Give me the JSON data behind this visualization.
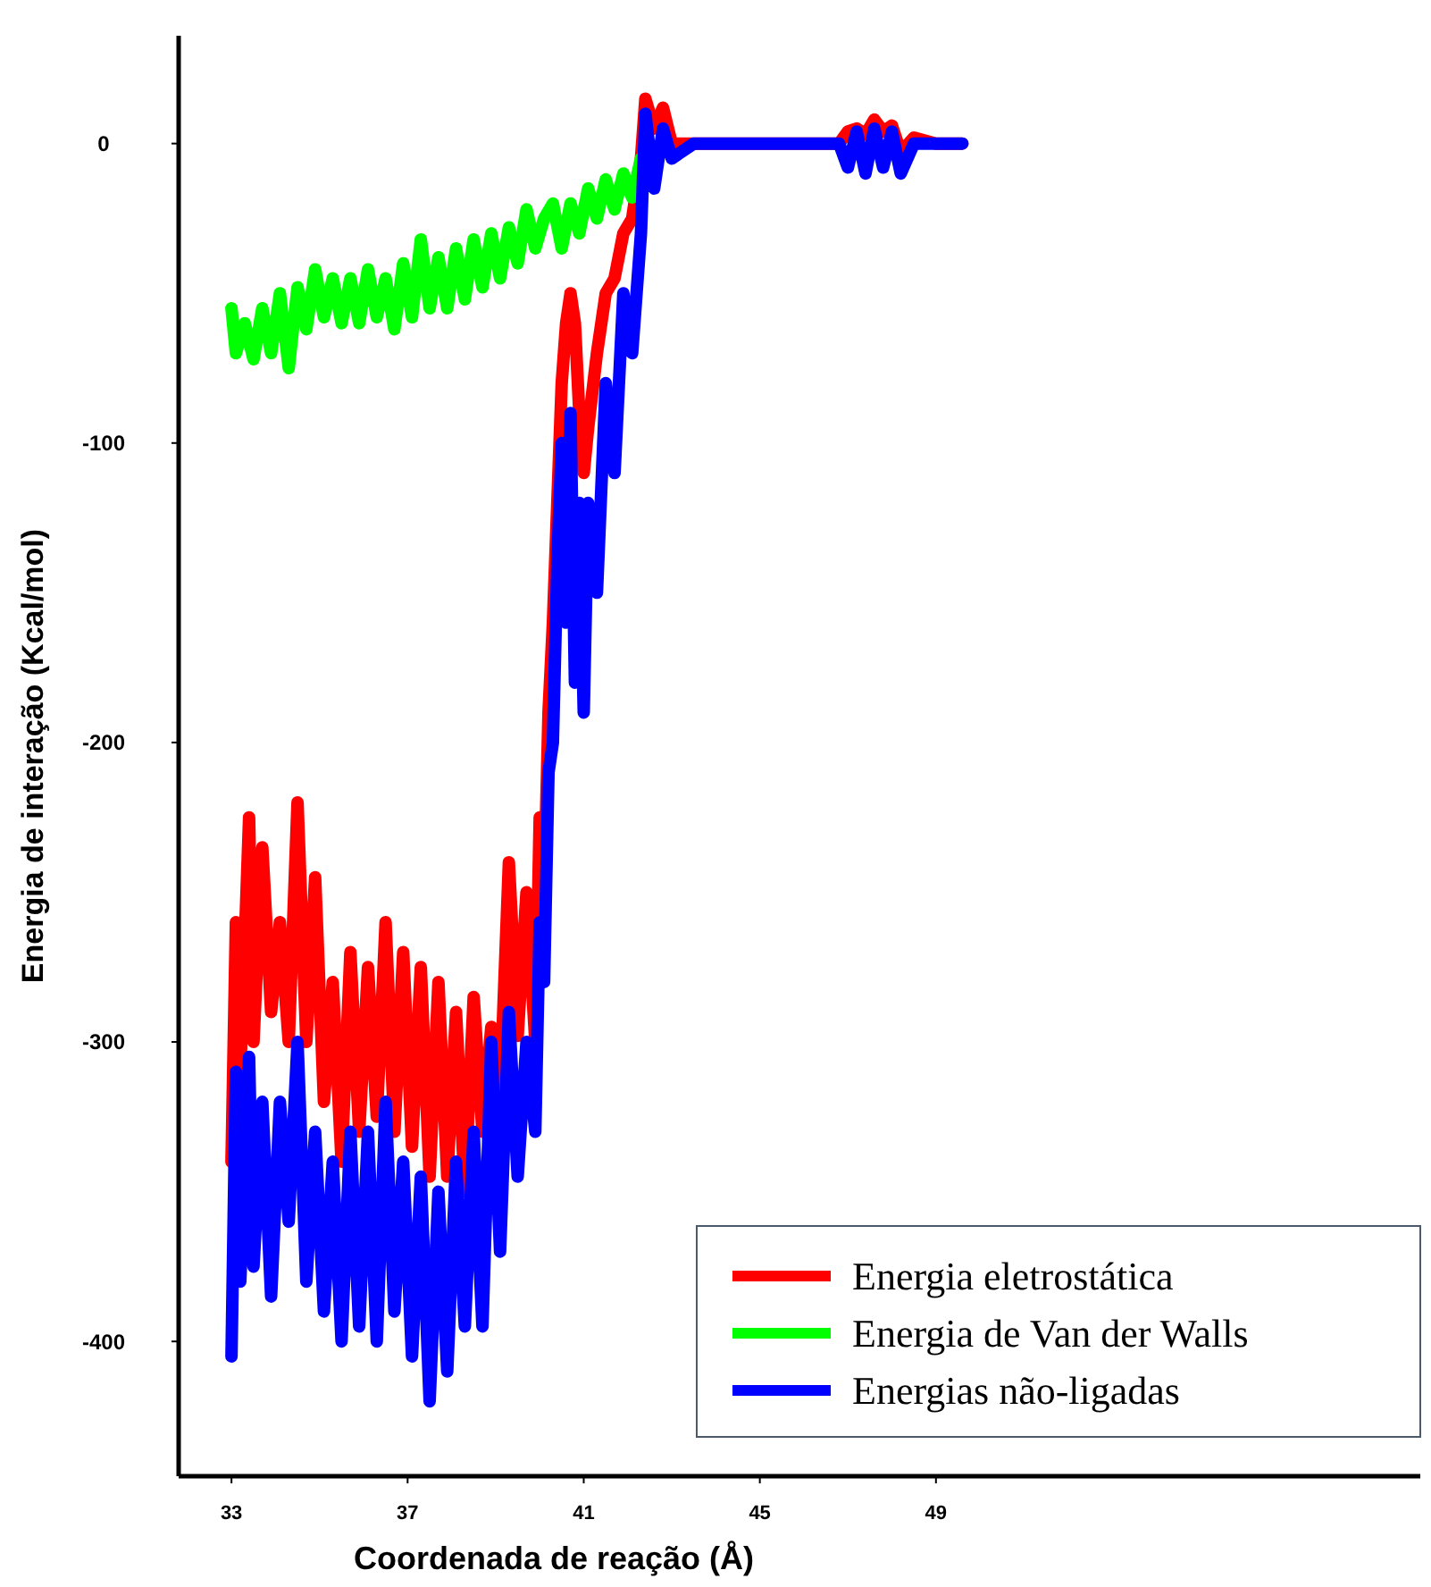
{
  "chart_data": {
    "type": "line",
    "xlabel": "Coordenada de reação (Å)",
    "ylabel": "Energia de interação (Kcal/mol)",
    "xlim": [
      31.8,
      60
    ],
    "xticks": [
      33,
      37,
      41,
      45,
      49
    ],
    "ylim": [
      -445,
      36
    ],
    "yticks": [
      -400,
      -300,
      -200,
      -100,
      0
    ],
    "grid": false,
    "legend": "bottom right",
    "marker": "none",
    "line_style": "solid",
    "series": [
      {
        "name": "Energia eletrostática",
        "color": "#ff0000",
        "x": [
          33.0,
          33.1,
          33.2,
          33.4,
          33.5,
          33.7,
          33.9,
          34.1,
          34.3,
          34.5,
          34.7,
          34.9,
          35.1,
          35.3,
          35.5,
          35.7,
          35.9,
          36.1,
          36.3,
          36.5,
          36.7,
          36.9,
          37.1,
          37.3,
          37.5,
          37.7,
          37.9,
          38.1,
          38.3,
          38.5,
          38.7,
          38.9,
          39.1,
          39.3,
          39.5,
          39.7,
          39.9,
          40.0,
          40.1,
          40.2,
          40.3,
          40.4,
          40.5,
          40.6,
          40.7,
          40.8,
          40.9,
          41.0,
          41.1,
          41.3,
          41.5,
          41.7,
          41.9,
          42.1,
          42.3,
          42.4,
          42.6,
          42.8,
          43.0,
          43.5,
          44,
          45,
          46,
          46.8,
          47.0,
          47.2,
          47.4,
          47.6,
          47.8,
          48.0,
          48.2,
          48.5,
          49,
          49.6
        ],
        "values": [
          -340,
          -260,
          -310,
          -225,
          -300,
          -235,
          -290,
          -260,
          -300,
          -220,
          -300,
          -245,
          -320,
          -280,
          -340,
          -270,
          -330,
          -275,
          -325,
          -260,
          -330,
          -270,
          -335,
          -275,
          -345,
          -280,
          -345,
          -290,
          -350,
          -285,
          -330,
          -295,
          -318,
          -240,
          -298,
          -250,
          -300,
          -225,
          -250,
          -190,
          -160,
          -120,
          -80,
          -60,
          -50,
          -60,
          -90,
          -110,
          -95,
          -70,
          -50,
          -45,
          -30,
          -25,
          -5,
          15,
          5,
          12,
          0,
          0,
          0,
          0,
          0,
          0,
          4,
          5,
          3,
          8,
          4,
          6,
          -3,
          2,
          0,
          0
        ]
      },
      {
        "name": "Energia de Van der Walls",
        "color": "#00ff00",
        "x": [
          33.0,
          33.1,
          33.3,
          33.5,
          33.7,
          33.9,
          34.1,
          34.3,
          34.5,
          34.7,
          34.9,
          35.1,
          35.3,
          35.5,
          35.7,
          35.9,
          36.1,
          36.3,
          36.5,
          36.7,
          36.9,
          37.1,
          37.3,
          37.5,
          37.7,
          37.9,
          38.1,
          38.3,
          38.5,
          38.7,
          38.9,
          39.1,
          39.3,
          39.5,
          39.7,
          39.9,
          40.1,
          40.3,
          40.5,
          40.7,
          40.9,
          41.1,
          41.3,
          41.5,
          41.7,
          41.9,
          42.1,
          42.3
        ],
        "values": [
          -55,
          -70,
          -60,
          -72,
          -55,
          -70,
          -50,
          -75,
          -48,
          -62,
          -42,
          -58,
          -45,
          -60,
          -45,
          -60,
          -42,
          -58,
          -45,
          -62,
          -40,
          -58,
          -32,
          -55,
          -38,
          -55,
          -35,
          -52,
          -32,
          -48,
          -30,
          -45,
          -28,
          -40,
          -22,
          -35,
          -25,
          -20,
          -35,
          -20,
          -30,
          -15,
          -25,
          -12,
          -22,
          -10,
          -18,
          -5
        ]
      },
      {
        "name": "Energias não-ligadas",
        "color": "#0000ff",
        "x": [
          33.0,
          33.1,
          33.2,
          33.4,
          33.5,
          33.7,
          33.9,
          34.1,
          34.3,
          34.5,
          34.7,
          34.9,
          35.1,
          35.3,
          35.5,
          35.7,
          35.9,
          36.1,
          36.3,
          36.5,
          36.7,
          36.9,
          37.1,
          37.3,
          37.5,
          37.7,
          37.9,
          38.1,
          38.3,
          38.5,
          38.7,
          38.9,
          39.1,
          39.3,
          39.5,
          39.7,
          39.9,
          40.0,
          40.1,
          40.2,
          40.3,
          40.4,
          40.5,
          40.6,
          40.7,
          40.8,
          40.9,
          41.0,
          41.1,
          41.3,
          41.5,
          41.7,
          41.9,
          42.1,
          42.3,
          42.4,
          42.6,
          42.8,
          43.0,
          43.5,
          44,
          45,
          46,
          46.8,
          47.0,
          47.2,
          47.4,
          47.6,
          47.8,
          48.0,
          48.2,
          48.5,
          49,
          49.6
        ],
        "values": [
          -405,
          -310,
          -380,
          -305,
          -375,
          -320,
          -385,
          -320,
          -360,
          -300,
          -380,
          -330,
          -390,
          -340,
          -400,
          -330,
          -395,
          -330,
          -400,
          -320,
          -390,
          -340,
          -405,
          -345,
          -420,
          -350,
          -410,
          -340,
          -395,
          -330,
          -395,
          -300,
          -370,
          -290,
          -345,
          -300,
          -330,
          -260,
          -280,
          -210,
          -200,
          -140,
          -100,
          -160,
          -90,
          -180,
          -120,
          -190,
          -120,
          -150,
          -80,
          -110,
          -50,
          -70,
          -30,
          10,
          -15,
          5,
          -5,
          0,
          0,
          0,
          0,
          0,
          -8,
          4,
          -10,
          5,
          -8,
          4,
          -10,
          0,
          0,
          0
        ]
      }
    ]
  }
}
